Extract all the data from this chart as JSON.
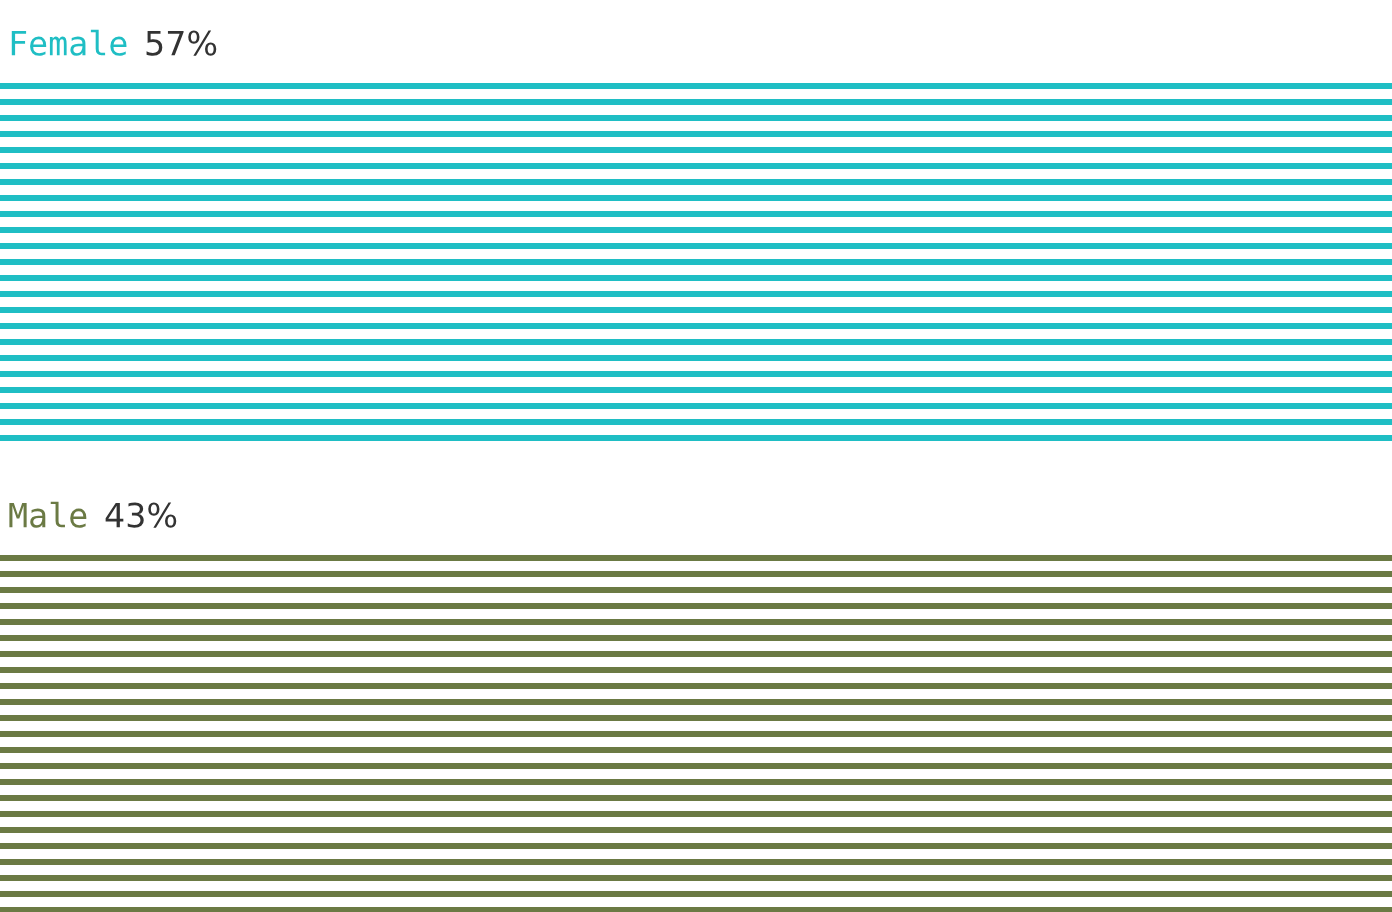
{
  "chart_data": {
    "type": "other",
    "categories": [
      "Female",
      "Male"
    ],
    "values": [
      57,
      43
    ],
    "value_labels": [
      "57%",
      "43%"
    ],
    "colors": [
      "#1fbec4",
      "#6b7a44"
    ]
  }
}
